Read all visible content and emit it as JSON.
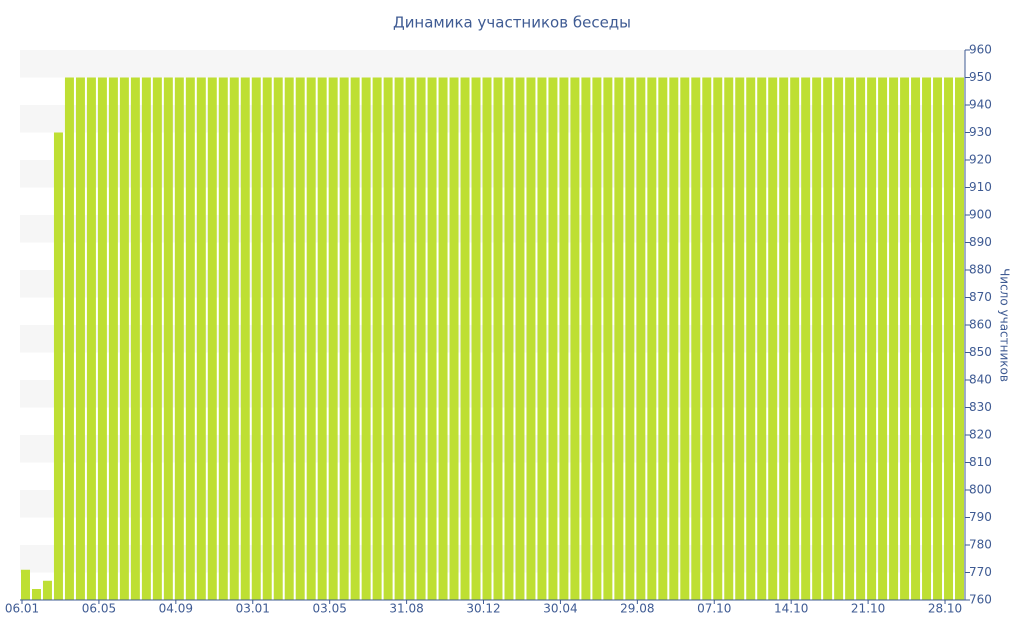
{
  "chart_data": {
    "type": "bar",
    "title": "Динамика участников беседы",
    "y_label": "Число участников",
    "categories": [
      "06.01",
      null,
      null,
      null,
      null,
      null,
      null,
      "06.05",
      null,
      null,
      null,
      null,
      null,
      null,
      "04.09",
      null,
      null,
      null,
      null,
      null,
      null,
      "03.01",
      null,
      null,
      null,
      null,
      null,
      null,
      "03.05",
      null,
      null,
      null,
      null,
      null,
      null,
      "31.08",
      null,
      null,
      null,
      null,
      null,
      null,
      "30.12",
      null,
      null,
      null,
      null,
      null,
      null,
      "30.04",
      null,
      null,
      null,
      null,
      null,
      null,
      "29.08",
      null,
      null,
      null,
      null,
      null,
      null,
      "07.10",
      null,
      null,
      null,
      null,
      null,
      null,
      "14.10",
      null,
      null,
      null,
      null,
      null,
      null,
      "21.10",
      null,
      null,
      null,
      null,
      null,
      null,
      "28.10",
      null
    ],
    "values": [
      771,
      764,
      767,
      930,
      950,
      950,
      950,
      950,
      950,
      950,
      950,
      950,
      950,
      950,
      950,
      950,
      950,
      950,
      950,
      950,
      950,
      950,
      950,
      950,
      950,
      950,
      950,
      950,
      950,
      950,
      950,
      950,
      950,
      950,
      950,
      950,
      950,
      950,
      950,
      950,
      950,
      950,
      950,
      950,
      950,
      950,
      950,
      950,
      950,
      950,
      950,
      950,
      950,
      950,
      950,
      950,
      950,
      950,
      950,
      950,
      950,
      950,
      950,
      950,
      950,
      950,
      950,
      950,
      950,
      950,
      950,
      950,
      950,
      950,
      950,
      950,
      950,
      950,
      950,
      950,
      950,
      950,
      950,
      950,
      950,
      950
    ],
    "color": "#bedf33",
    "ylim": [
      760,
      960
    ],
    "yticks": [
      760,
      770,
      780,
      790,
      800,
      810,
      820,
      830,
      840,
      850,
      860,
      870,
      880,
      890,
      900,
      910,
      920,
      930,
      940,
      950,
      960
    ],
    "grid": true
  }
}
